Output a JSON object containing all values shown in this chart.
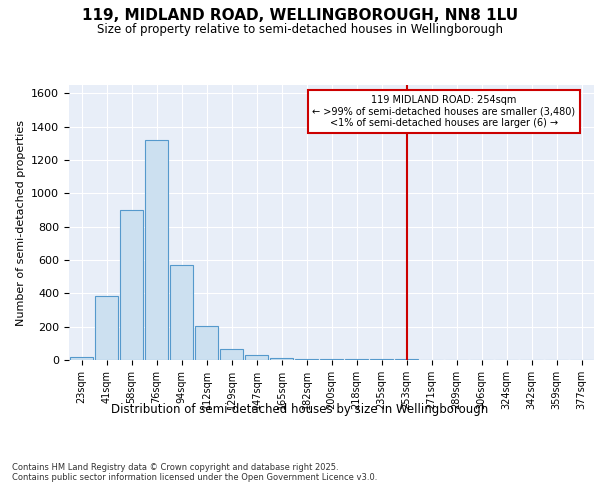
{
  "title_line1": "119, MIDLAND ROAD, WELLINGBOROUGH, NN8 1LU",
  "title_line2": "Size of property relative to semi-detached houses in Wellingborough",
  "xlabel": "Distribution of semi-detached houses by size in Wellingborough",
  "ylabel": "Number of semi-detached properties",
  "categories": [
    "23sqm",
    "41sqm",
    "58sqm",
    "76sqm",
    "94sqm",
    "112sqm",
    "129sqm",
    "147sqm",
    "165sqm",
    "182sqm",
    "200sqm",
    "218sqm",
    "235sqm",
    "253sqm",
    "271sqm",
    "289sqm",
    "306sqm",
    "324sqm",
    "342sqm",
    "359sqm",
    "377sqm"
  ],
  "values": [
    20,
    385,
    900,
    1320,
    570,
    205,
    65,
    30,
    15,
    5,
    5,
    5,
    5,
    5,
    0,
    0,
    0,
    0,
    0,
    0,
    0
  ],
  "bar_color": "#cce0f0",
  "bar_edge_color": "#5599cc",
  "red_line_index": 13,
  "annotation_title": "119 MIDLAND ROAD: 254sqm",
  "annotation_line2": "← >99% of semi-detached houses are smaller (3,480)",
  "annotation_line3": "<1% of semi-detached houses are larger (6) →",
  "ylim": [
    0,
    1650
  ],
  "yticks": [
    0,
    200,
    400,
    600,
    800,
    1000,
    1200,
    1400,
    1600
  ],
  "fig_bg": "#ffffff",
  "plot_bg": "#e8eef8",
  "grid_color": "#ffffff",
  "red_color": "#cc0000",
  "footer_line1": "Contains HM Land Registry data © Crown copyright and database right 2025.",
  "footer_line2": "Contains public sector information licensed under the Open Government Licence v3.0."
}
